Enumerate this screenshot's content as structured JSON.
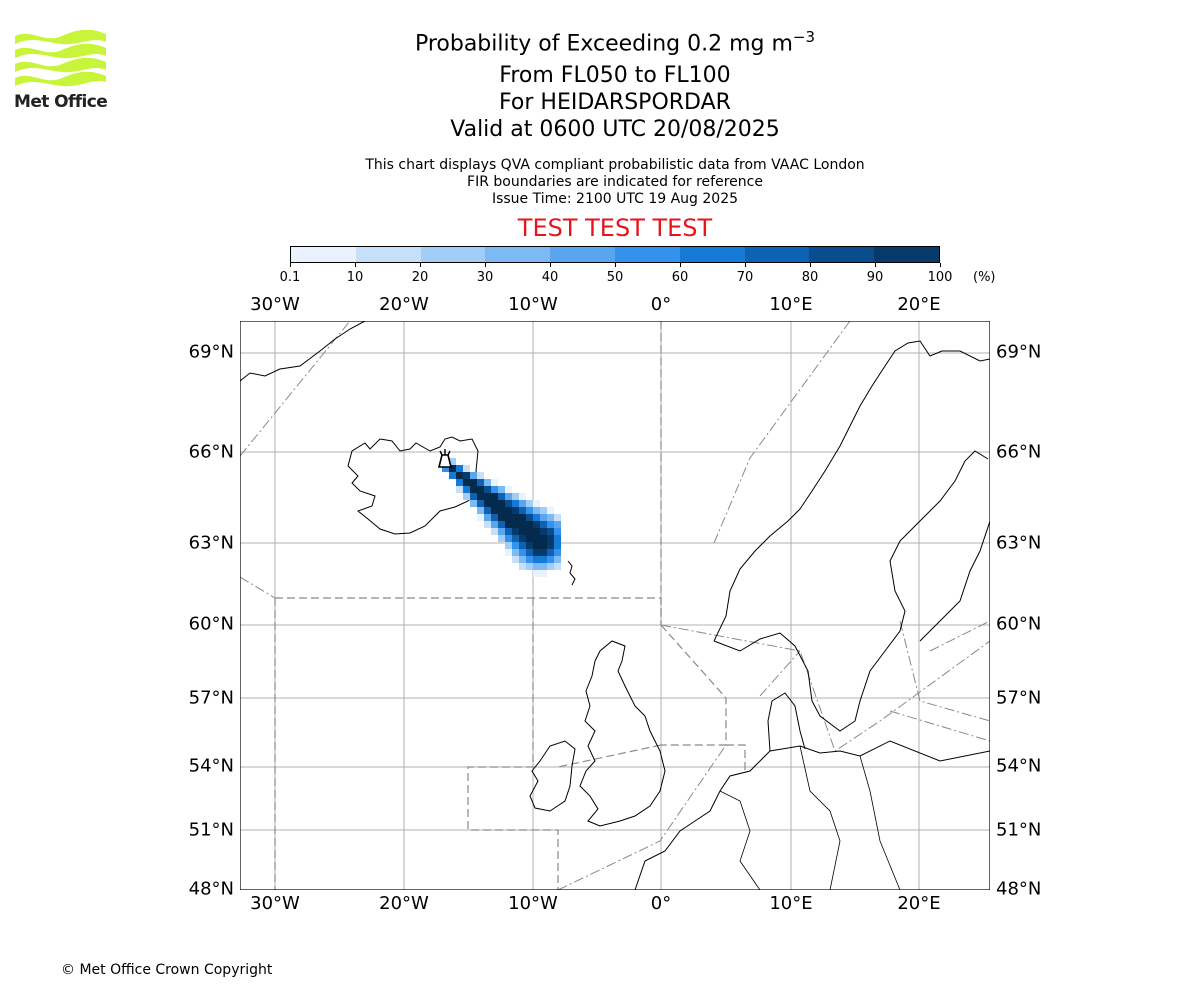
{
  "logo": {
    "text": "Met Office",
    "color": "#c8f53a"
  },
  "title": {
    "main": "Probability of Exceeding 0.2 mg m",
    "superscript": "−3",
    "level": "From FL050 to FL100",
    "volcano": "For HEIDARSPORDAR",
    "valid": "Valid at 0600 UTC 20/08/2025"
  },
  "subtitle": {
    "line1": "This chart displays QVA compliant probabilistic data from VAAC London",
    "line2": "FIR boundaries are indicated for reference",
    "line3": "Issue Time: 2100 UTC 19 Aug 2025"
  },
  "test_banner": "TEST TEST TEST",
  "colorbar": {
    "ticks": [
      "0.1",
      "10",
      "20",
      "30",
      "40",
      "50",
      "60",
      "70",
      "80",
      "90",
      "100"
    ],
    "unit": "(%)",
    "colors": [
      "#eaf3fd",
      "#c6e0fa",
      "#a2cdf6",
      "#7dbaf3",
      "#59a6ef",
      "#3592ec",
      "#1579d6",
      "#0d62b3",
      "#084d8e",
      "#063a6a",
      "#042a4d"
    ]
  },
  "map": {
    "lon_labels": [
      "30°W",
      "20°W",
      "10°W",
      "0°",
      "10°E",
      "20°E"
    ],
    "lat_labels": [
      "69°N",
      "66°N",
      "63°N",
      "60°N",
      "57°N",
      "54°N",
      "51°N",
      "48°N"
    ],
    "extent": {
      "lon_min": -33,
      "lon_max": 26,
      "lat_min": 48,
      "lat_max": 70
    },
    "volcano_name": "HEIDARSPORDAR"
  },
  "copyright": "© Met Office Crown Copyright"
}
